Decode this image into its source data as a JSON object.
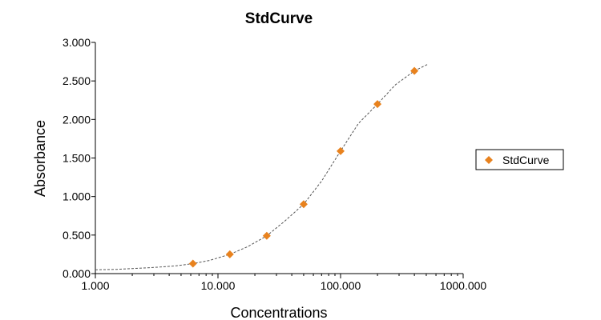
{
  "chart_data": {
    "type": "scatter",
    "title": "StdCurve",
    "xlabel": "Concentrations",
    "ylabel": "Absorbance",
    "x_scale": "log",
    "xlim": [
      1,
      1000
    ],
    "ylim": [
      0,
      3
    ],
    "x_ticks": [
      1,
      10,
      100,
      1000
    ],
    "x_tick_labels": [
      "1.000",
      "10.000",
      "100.000",
      "1000.000"
    ],
    "y_ticks": [
      0,
      0.5,
      1,
      1.5,
      2,
      2.5,
      3
    ],
    "y_tick_labels": [
      "0.000",
      "0.500",
      "1.000",
      "1.500",
      "2.000",
      "2.500",
      "3.000"
    ],
    "grid": false,
    "legend_position": "right",
    "series": [
      {
        "name": "StdCurve",
        "marker": "diamond",
        "color": "#E8821E",
        "x": [
          6.25,
          12.5,
          25,
          50,
          100,
          200,
          400
        ],
        "y": [
          0.13,
          0.25,
          0.49,
          0.9,
          1.59,
          2.2,
          2.63
        ]
      }
    ],
    "fit_curve": {
      "style": "dashed",
      "color": "#555555",
      "x": [
        1,
        1.5,
        2,
        3,
        4.5,
        6.25,
        8.5,
        12.5,
        17.5,
        25,
        35,
        50,
        70,
        100,
        140,
        200,
        280,
        400,
        520
      ],
      "y": [
        0.05,
        0.055,
        0.065,
        0.08,
        0.1,
        0.13,
        0.17,
        0.25,
        0.35,
        0.49,
        0.68,
        0.9,
        1.2,
        1.59,
        1.95,
        2.2,
        2.45,
        2.63,
        2.72
      ]
    }
  }
}
